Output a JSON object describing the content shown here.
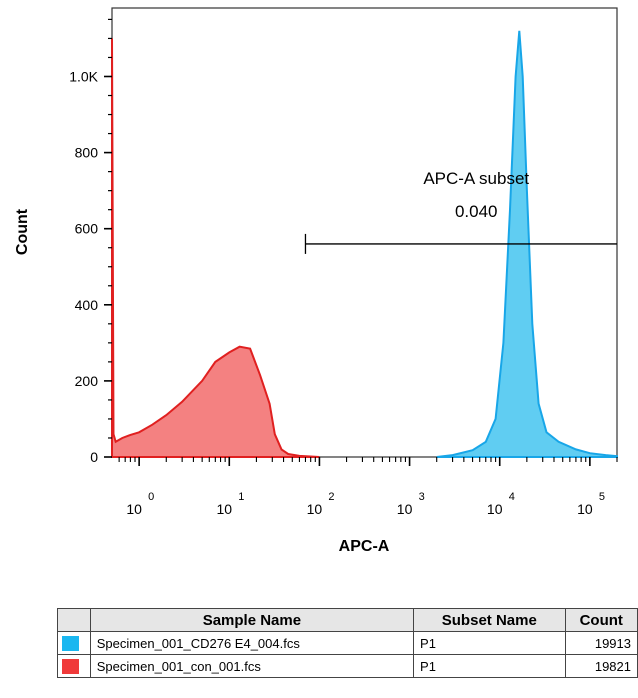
{
  "chart_data": {
    "type": "area",
    "xlabel": "APC-A",
    "ylabel": "Count",
    "xscale": "log",
    "xlim": [
      0.5,
      200000
    ],
    "ylim": [
      0,
      1180
    ],
    "y_ticks": [
      {
        "value": 0,
        "label": "0"
      },
      {
        "value": 200,
        "label": "200"
      },
      {
        "value": 400,
        "label": "400"
      },
      {
        "value": 600,
        "label": "600"
      },
      {
        "value": 800,
        "label": "800"
      },
      {
        "value": 1000,
        "label": "1.0K"
      }
    ],
    "x_ticks": [
      {
        "value": 1,
        "base": "10",
        "exp": "0"
      },
      {
        "value": 10,
        "base": "10",
        "exp": "1"
      },
      {
        "value": 100,
        "base": "10",
        "exp": "2"
      },
      {
        "value": 1000,
        "base": "10",
        "exp": "3"
      },
      {
        "value": 10000,
        "base": "10",
        "exp": "4"
      },
      {
        "value": 100000,
        "base": "10",
        "exp": "5"
      }
    ],
    "gate": {
      "name": "APC-A subset",
      "value": "0.040",
      "x_start": 70,
      "x_end": 200000,
      "y": 560
    },
    "series": [
      {
        "color": "#f26b6b",
        "stroke": "#e02020",
        "points": [
          [
            0.5,
            1100
          ],
          [
            0.52,
            60
          ],
          [
            0.55,
            40
          ],
          [
            0.65,
            50
          ],
          [
            0.8,
            58
          ],
          [
            1,
            65
          ],
          [
            1.4,
            85
          ],
          [
            2,
            110
          ],
          [
            3,
            145
          ],
          [
            5,
            200
          ],
          [
            7,
            250
          ],
          [
            10,
            275
          ],
          [
            13,
            290
          ],
          [
            17,
            285
          ],
          [
            22,
            215
          ],
          [
            28,
            140
          ],
          [
            32,
            60
          ],
          [
            38,
            20
          ],
          [
            45,
            8
          ],
          [
            60,
            3
          ],
          [
            100,
            0
          ]
        ]
      },
      {
        "color": "#44c4f0",
        "stroke": "#18a6e8",
        "points": [
          [
            2000,
            0
          ],
          [
            3000,
            5
          ],
          [
            5000,
            18
          ],
          [
            7000,
            40
          ],
          [
            9000,
            100
          ],
          [
            11000,
            300
          ],
          [
            13000,
            650
          ],
          [
            15000,
            1000
          ],
          [
            16500,
            1120
          ],
          [
            18000,
            1000
          ],
          [
            20000,
            700
          ],
          [
            23000,
            350
          ],
          [
            27000,
            140
          ],
          [
            33000,
            65
          ],
          [
            45000,
            40
          ],
          [
            70000,
            20
          ],
          [
            100000,
            10
          ],
          [
            150000,
            5
          ],
          [
            200000,
            2
          ]
        ]
      }
    ]
  },
  "legend": {
    "headers": {
      "swatch": "",
      "sample": "Sample Name",
      "subset": "Subset Name",
      "count": "Count"
    },
    "rows": [
      {
        "color": "#1ab7f0",
        "sample": "Specimen_001_CD276 E4_004.fcs",
        "subset": "P1",
        "count": "19913"
      },
      {
        "color": "#f03a3a",
        "sample": "Specimen_001_con_001.fcs",
        "subset": "P1",
        "count": "19821"
      }
    ]
  }
}
